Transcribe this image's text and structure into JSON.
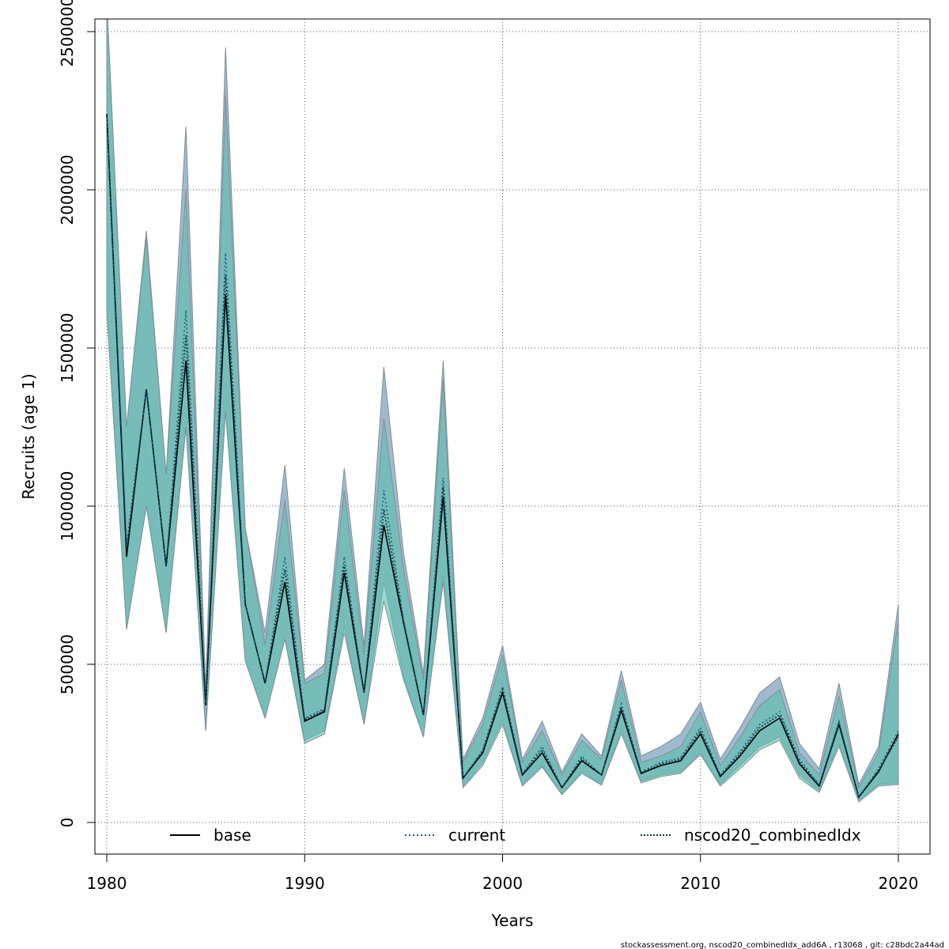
{
  "chart_data": {
    "type": "line",
    "xlabel": "Years",
    "ylabel": "Recruits (age 1)",
    "xlim": [
      1979.4,
      2021.6
    ],
    "ylim": [
      -100000,
      2540000
    ],
    "x_ticks": [
      1980,
      1990,
      2000,
      2010,
      2020
    ],
    "y_ticks": [
      0,
      500000,
      1000000,
      1500000,
      2000000,
      2500000
    ],
    "grid": true,
    "legend_placement": "bottom",
    "footer": "stockassessment.org, nscod20_combinedIdx_add6A , r13068 , git: c28bdc2a44ad",
    "colors": {
      "band_current": "#7fa3bd",
      "band_combined": "#5cbfae",
      "band_overlap": "#5aafaa",
      "band_edge": "#7f8f99",
      "line_base": "#000000",
      "line_current": "#1f5f8f",
      "line_combined": "#0a3a3a",
      "grid": "#555555"
    },
    "x": [
      1980,
      1981,
      1982,
      1983,
      1984,
      1985,
      1986,
      1987,
      1988,
      1989,
      1990,
      1991,
      1992,
      1993,
      1994,
      1995,
      1996,
      1997,
      1998,
      1999,
      2000,
      2001,
      2002,
      2003,
      2004,
      2005,
      2006,
      2007,
      2008,
      2009,
      2010,
      2011,
      2012,
      2013,
      2014,
      2015,
      2016,
      2017,
      2018,
      2019,
      2020
    ],
    "bands": [
      {
        "name": "current",
        "lower": [
          1620000,
          610000,
          1000000,
          600000,
          1250000,
          290000,
          1300000,
          510000,
          330000,
          580000,
          260000,
          290000,
          620000,
          310000,
          760000,
          460000,
          270000,
          780000,
          110000,
          190000,
          320000,
          120000,
          180000,
          90000,
          160000,
          120000,
          290000,
          130000,
          150000,
          160000,
          220000,
          120000,
          180000,
          240000,
          270000,
          150000,
          100000,
          250000,
          70000,
          120000,
          125000
        ],
        "upper": [
          2600000,
          1250000,
          1870000,
          1100000,
          2200000,
          420000,
          2450000,
          930000,
          600000,
          1130000,
          450000,
          500000,
          1120000,
          560000,
          1440000,
          850000,
          470000,
          1460000,
          200000,
          330000,
          560000,
          200000,
          320000,
          160000,
          280000,
          210000,
          480000,
          210000,
          240000,
          280000,
          380000,
          200000,
          300000,
          410000,
          460000,
          250000,
          170000,
          440000,
          120000,
          240000,
          690000
        ]
      },
      {
        "name": "nscod20_combinedIdx",
        "lower": [
          1620000,
          610000,
          1000000,
          600000,
          1250000,
          290000,
          1300000,
          510000,
          330000,
          580000,
          250000,
          280000,
          600000,
          310000,
          700000,
          450000,
          270000,
          760000,
          110000,
          180000,
          310000,
          115000,
          175000,
          88000,
          155000,
          118000,
          280000,
          125000,
          145000,
          155000,
          215000,
          115000,
          170000,
          230000,
          260000,
          140000,
          95000,
          240000,
          65000,
          115000,
          120000
        ],
        "upper": [
          2600000,
          1250000,
          1850000,
          1100000,
          2000000,
          400000,
          2300000,
          930000,
          560000,
          1020000,
          440000,
          470000,
          1050000,
          530000,
          1280000,
          800000,
          450000,
          1400000,
          190000,
          310000,
          530000,
          190000,
          290000,
          150000,
          260000,
          200000,
          450000,
          190000,
          210000,
          240000,
          350000,
          180000,
          270000,
          370000,
          420000,
          220000,
          150000,
          400000,
          110000,
          220000,
          640000
        ]
      }
    ],
    "series": [
      {
        "name": "base",
        "style": "solid",
        "values": [
          2240000,
          840000,
          1370000,
          810000,
          1460000,
          370000,
          1670000,
          690000,
          440000,
          760000,
          320000,
          350000,
          790000,
          410000,
          940000,
          630000,
          340000,
          1030000,
          140000,
          220000,
          410000,
          150000,
          220000,
          110000,
          195000,
          150000,
          355000,
          155000,
          180000,
          195000,
          280000,
          145000,
          210000,
          290000,
          330000,
          185000,
          115000,
          310000,
          80000,
          160000,
          280000
        ]
      },
      {
        "name": "current",
        "style": "dotted",
        "values": [
          2240000,
          880000,
          1370000,
          810000,
          1620000,
          380000,
          1800000,
          690000,
          440000,
          840000,
          330000,
          360000,
          840000,
          410000,
          1050000,
          640000,
          340000,
          1090000,
          140000,
          230000,
          430000,
          155000,
          240000,
          110000,
          210000,
          150000,
          375000,
          160000,
          190000,
          205000,
          300000,
          150000,
          225000,
          310000,
          350000,
          200000,
          120000,
          320000,
          80000,
          170000,
          290000
        ]
      },
      {
        "name": "nscod20_combinedIdx",
        "style": "dashed",
        "values": [
          2240000,
          860000,
          1370000,
          810000,
          1540000,
          375000,
          1730000,
          690000,
          440000,
          800000,
          325000,
          355000,
          815000,
          410000,
          990000,
          635000,
          340000,
          1060000,
          140000,
          225000,
          420000,
          152000,
          230000,
          110000,
          202000,
          150000,
          365000,
          157000,
          185000,
          200000,
          290000,
          147000,
          217000,
          300000,
          340000,
          192000,
          117000,
          315000,
          80000,
          165000,
          270000
        ]
      }
    ]
  }
}
